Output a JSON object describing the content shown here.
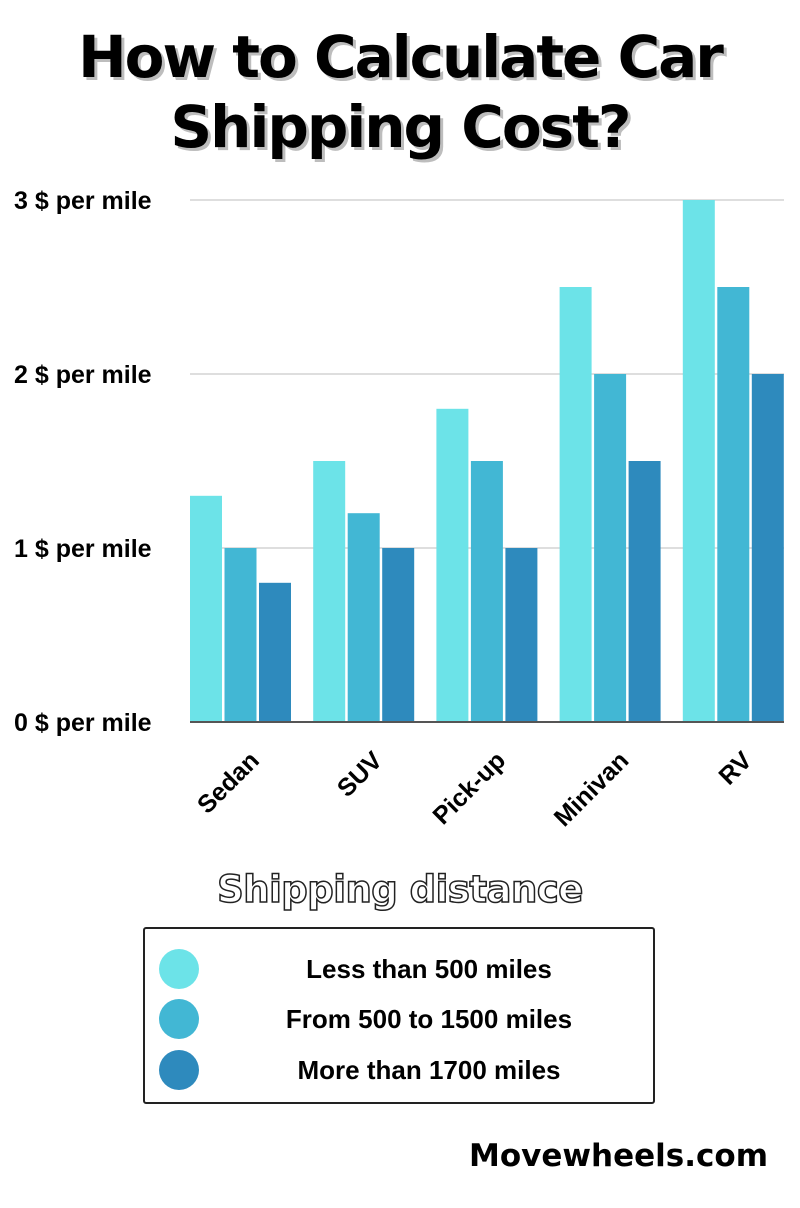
{
  "title": {
    "line1": "How to Calculate Car",
    "line2": "Shipping Cost?"
  },
  "legend": {
    "title": "Shipping distance",
    "items": [
      {
        "label": "Less than 500 miles",
        "color": "#6ce3e8"
      },
      {
        "label": "From 500 to 1500 miles",
        "color": "#42b7d4"
      },
      {
        "label": "More than 1700 miles",
        "color": "#2e8abd"
      }
    ]
  },
  "footer": "Movewheels.com",
  "chart_data": {
    "type": "bar",
    "title": "How to Calculate Car Shipping Cost?",
    "categories": [
      "Sedan",
      "SUV",
      "Pick-up",
      "Minivan",
      "RV"
    ],
    "series": [
      {
        "name": "Less than 500 miles",
        "values": [
          1.3,
          1.5,
          1.8,
          2.5,
          3.0
        ],
        "color": "#6ce3e8"
      },
      {
        "name": "From 500 to 1500 miles",
        "values": [
          1.0,
          1.2,
          1.5,
          2.0,
          2.5
        ],
        "color": "#42b7d4"
      },
      {
        "name": "More than 1700 miles",
        "values": [
          0.8,
          1.0,
          1.0,
          1.5,
          2.0
        ],
        "color": "#2e8abd"
      }
    ],
    "yticks": [
      {
        "value": 0,
        "label": "0 $ per mile"
      },
      {
        "value": 1,
        "label": "1 $ per mile"
      },
      {
        "value": 2,
        "label": "2 $ per mile"
      },
      {
        "value": 3,
        "label": "3 $ per mile"
      }
    ],
    "ylim": [
      0,
      3
    ],
    "xlabel": "",
    "ylabel": "",
    "grid": true,
    "legend_position": "bottom"
  }
}
